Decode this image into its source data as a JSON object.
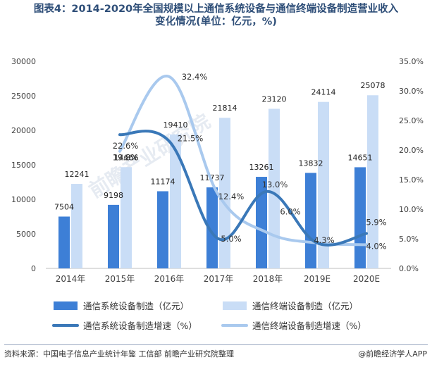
{
  "title_line1": "图表4：2014-2020年全国规模以上通信系统设备与通信终端设备制造营业收入",
  "title_line2": "变化情况(单位：亿元，%)",
  "source": "资料来源：中国电子信息产业统计年鉴 工信部 前瞻产业研究院整理",
  "brand": "@前瞻经济学人APP",
  "watermark": "前瞻产业研究院",
  "colors": {
    "sys_bar": "#3d7fd6",
    "term_bar": "#c9ddf6",
    "sys_line": "#3a78b8",
    "term_line": "#a9c9ee"
  },
  "chart_data": {
    "type": "bar",
    "categories": [
      "2014年",
      "2015年",
      "2016年",
      "2017年",
      "2018年",
      "2019E",
      "2020E"
    ],
    "series": [
      {
        "name": "通信系统设备制造（亿元）",
        "type": "bar",
        "axis": "left",
        "values": [
          7504,
          9198,
          11174,
          11737,
          13261,
          13832,
          14651
        ]
      },
      {
        "name": "通信终端设备制造（亿元）",
        "type": "bar",
        "axis": "left",
        "values": [
          12241,
          14666,
          19410,
          21814,
          23120,
          24114,
          25078
        ]
      },
      {
        "name": "通信系统设备制造增速（%）",
        "type": "line",
        "axis": "right",
        "values": [
          null,
          22.6,
          21.5,
          5.0,
          13.0,
          4.3,
          5.9
        ]
      },
      {
        "name": "通信终端设备制造增速（%）",
        "type": "line",
        "axis": "right",
        "values": [
          null,
          19.8,
          32.4,
          12.4,
          6.0,
          4.3,
          4.0
        ]
      }
    ],
    "y_left": {
      "min": 0,
      "max": 30000,
      "ticks": [
        "0",
        "5000",
        "10000",
        "15000",
        "20000",
        "25000",
        "30000"
      ]
    },
    "y_right": {
      "min": 0,
      "max": 35,
      "ticks": [
        "0.0%",
        "5.0%",
        "10.0%",
        "15.0%",
        "20.0%",
        "25.0%",
        "30.0%",
        "35.0%"
      ]
    },
    "line_labels_sys": [
      "",
      "22.6%",
      "21.5%",
      "5.0%",
      "13.0%",
      "4.3%",
      "5.9%"
    ],
    "line_labels_term": [
      "",
      "19.8%",
      "32.4%",
      "12.4%",
      "6.0%",
      "",
      "4.0%"
    ],
    "legend_position": "bottom",
    "grid": false
  }
}
